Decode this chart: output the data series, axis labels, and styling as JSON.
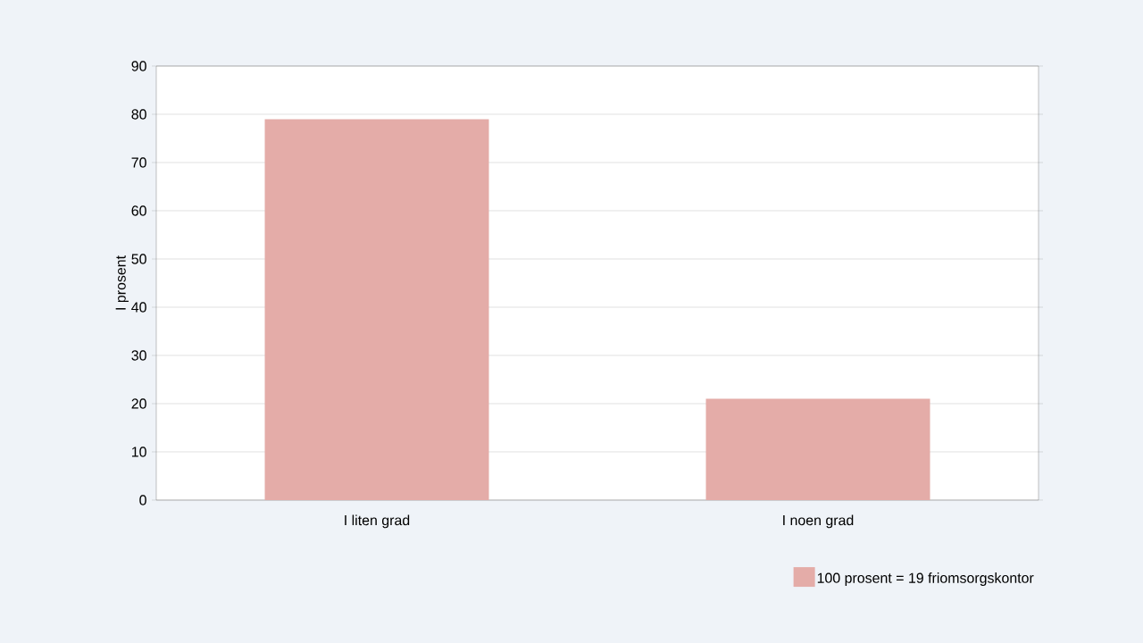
{
  "chart_data": {
    "type": "bar",
    "ylabel": "I prosent",
    "categories": [
      "I liten grad",
      "I noen grad"
    ],
    "series": [
      {
        "name": "100 prosent = 19 friomsorgskontor",
        "color": "#e4aca8",
        "values": [
          79,
          21
        ]
      }
    ],
    "ylim": [
      0,
      90
    ],
    "yticks": [
      0,
      10,
      20,
      30,
      40,
      50,
      60,
      70,
      80,
      90
    ],
    "grid": "y",
    "legend": "bottom right"
  }
}
